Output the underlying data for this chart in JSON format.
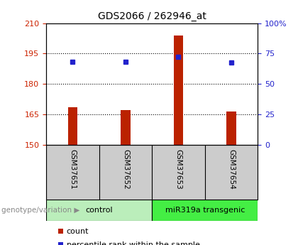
{
  "title": "GDS2066 / 262946_at",
  "samples": [
    "GSM37651",
    "GSM37652",
    "GSM37653",
    "GSM37654"
  ],
  "bar_values": [
    168.5,
    167.0,
    204.0,
    166.5
  ],
  "percentile_values": [
    191.0,
    191.0,
    193.5,
    190.5
  ],
  "bar_color": "#bb2200",
  "percentile_color": "#2222cc",
  "left_ylim": [
    150,
    210
  ],
  "left_yticks": [
    150,
    165,
    180,
    195,
    210
  ],
  "right_ylim": [
    0,
    100
  ],
  "right_yticks": [
    0,
    25,
    50,
    75,
    100
  ],
  "right_yticklabels": [
    "0",
    "25",
    "50",
    "75",
    "100%"
  ],
  "groups": [
    {
      "label": "control",
      "samples": [
        0,
        1
      ],
      "color": "#bbeebb"
    },
    {
      "label": "miR319a transgenic",
      "samples": [
        2,
        3
      ],
      "color": "#44ee44"
    }
  ],
  "group_label_prefix": "genotype/variation",
  "legend_count_label": "count",
  "legend_percentile_label": "percentile rank within the sample",
  "bar_width": 0.18,
  "grid_ticks": [
    165,
    180,
    195
  ],
  "tick_label_color_left": "#cc2200",
  "tick_label_color_right": "#2222cc",
  "xlabel_area_color": "#cccccc",
  "plot_bg_color": "#ffffff",
  "fig_bg_color": "#ffffff"
}
